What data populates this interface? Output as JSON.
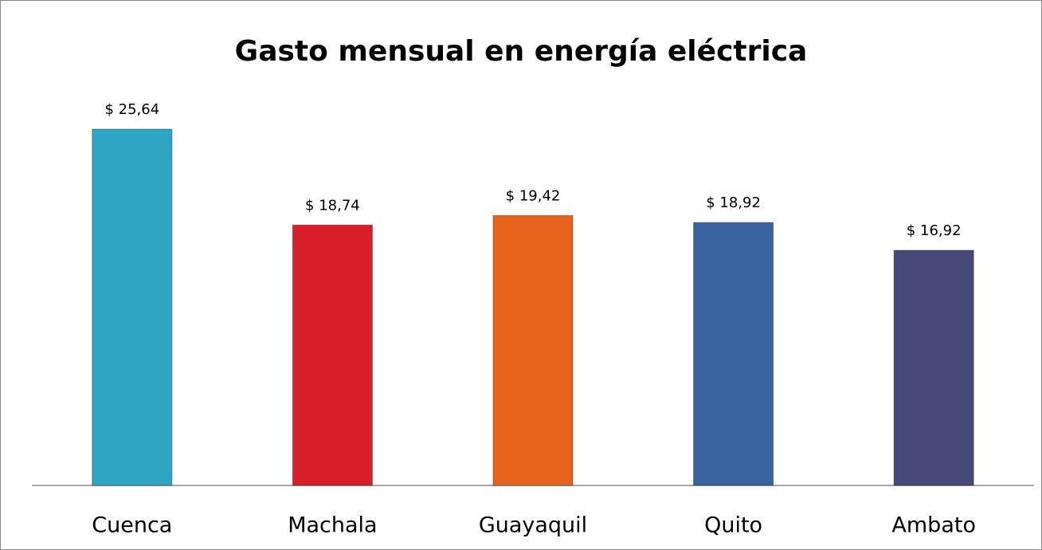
{
  "chart_data": {
    "type": "bar",
    "title": "Gasto mensual en energía eléctrica",
    "categories": [
      "Cuenca",
      "Machala",
      "Guayaquil",
      "Quito",
      "Ambato"
    ],
    "values": [
      25.64,
      18.74,
      19.42,
      18.92,
      16.92
    ],
    "value_labels": [
      "$ 25,64",
      "$ 18,74",
      "$ 19,42",
      "$ 18,92",
      "$ 16,92"
    ],
    "colors": [
      "#2ea6c3",
      "#d9202a",
      "#e8641e",
      "#3a64a0",
      "#464a78"
    ],
    "ylim": [
      0,
      30
    ]
  }
}
